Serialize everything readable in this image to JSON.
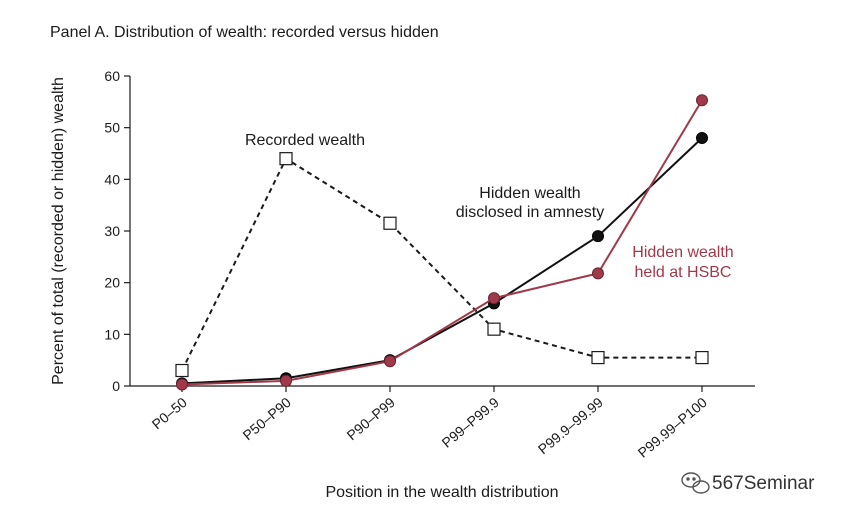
{
  "chart_data": {
    "type": "line",
    "title": "Panel A. Distribution of wealth: recorded versus hidden",
    "xlabel": "Position in the wealth distribution",
    "ylabel": "Percent of total (recorded or hidden) wealth",
    "ylim": [
      0,
      60
    ],
    "yticks": [
      0,
      10,
      20,
      30,
      40,
      50,
      60
    ],
    "categories": [
      "P0–50",
      "P50–P90",
      "P90–P99",
      "P99–P99.9",
      "P99.9–99.99",
      "P99.99–P100"
    ],
    "grid": false,
    "series": [
      {
        "key": "recorded",
        "name": "Recorded wealth",
        "values": [
          3,
          44,
          31.5,
          11,
          5.5,
          5.5
        ],
        "color": "#1a1a1a",
        "style": "dashed",
        "marker": "open-square"
      },
      {
        "key": "amnesty",
        "name_lines": [
          "Hidden wealth",
          "disclosed in amnesty"
        ],
        "values": [
          0.5,
          1.5,
          5,
          16,
          29,
          48
        ],
        "color": "#111111",
        "style": "solid",
        "marker": "filled-circle"
      },
      {
        "key": "hsbc",
        "name_lines": [
          "Hidden wealth",
          "held at HSBC"
        ],
        "values": [
          0.3,
          1,
          4.8,
          17,
          21.8,
          55.3
        ],
        "color": "#a03a4a",
        "style": "solid",
        "marker": "filled-circle"
      }
    ]
  },
  "watermark": {
    "text": "567Seminar",
    "icon": "wechat-icon"
  }
}
